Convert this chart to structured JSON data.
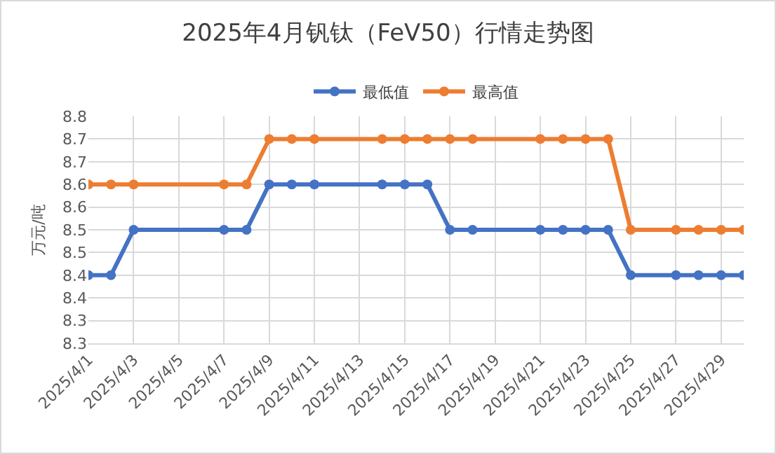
{
  "chart_data": {
    "type": "line",
    "title": "2025年4月钒钛（FeV50）行情走势图",
    "ylabel": "万元/吨",
    "x": [
      "2025-04-01",
      "2025-04-02",
      "2025-04-03",
      "2025-04-07",
      "2025-04-08",
      "2025-04-09",
      "2025-04-10",
      "2025-04-11",
      "2025-04-14",
      "2025-04-15",
      "2025-04-16",
      "2025-04-17",
      "2025-04-18",
      "2025-04-21",
      "2025-04-22",
      "2025-04-23",
      "2025-04-24",
      "2025-04-25",
      "2025-04-27",
      "2025-04-28",
      "2025-04-29",
      "2025-04-30"
    ],
    "series": [
      {
        "name": "最低值",
        "color": "#4472c4",
        "values": [
          8.45,
          8.45,
          8.55,
          8.55,
          8.55,
          8.65,
          8.65,
          8.65,
          8.65,
          8.65,
          8.65,
          8.55,
          8.55,
          8.55,
          8.55,
          8.55,
          8.55,
          8.45,
          8.45,
          8.45,
          8.45,
          8.45
        ]
      },
      {
        "name": "最高值",
        "color": "#ed7d31",
        "values": [
          8.65,
          8.65,
          8.65,
          8.65,
          8.65,
          8.75,
          8.75,
          8.75,
          8.75,
          8.75,
          8.75,
          8.75,
          8.75,
          8.75,
          8.75,
          8.75,
          8.75,
          8.55,
          8.55,
          8.55,
          8.55,
          8.55
        ]
      }
    ],
    "xlim": [
      "2025-04-01",
      "2025-04-30"
    ],
    "xticks": [
      {
        "value": "2025-04-01",
        "label": "2025/4/1"
      },
      {
        "value": "2025-04-03",
        "label": "2025/4/3"
      },
      {
        "value": "2025-04-05",
        "label": "2025/4/5"
      },
      {
        "value": "2025-04-07",
        "label": "2025/4/7"
      },
      {
        "value": "2025-04-09",
        "label": "2025/4/9"
      },
      {
        "value": "2025-04-11",
        "label": "2025/4/11"
      },
      {
        "value": "2025-04-13",
        "label": "2025/4/13"
      },
      {
        "value": "2025-04-15",
        "label": "2025/4/15"
      },
      {
        "value": "2025-04-17",
        "label": "2025/4/17"
      },
      {
        "value": "2025-04-19",
        "label": "2025/4/19"
      },
      {
        "value": "2025-04-21",
        "label": "2025/4/21"
      },
      {
        "value": "2025-04-23",
        "label": "2025/4/23"
      },
      {
        "value": "2025-04-25",
        "label": "2025/4/25"
      },
      {
        "value": "2025-04-27",
        "label": "2025/4/27"
      },
      {
        "value": "2025-04-29",
        "label": "2025/4/29"
      }
    ],
    "ylim": [
      8.3,
      8.8
    ],
    "yticks": [
      {
        "value": 8.3,
        "label": "8.3"
      },
      {
        "value": 8.35,
        "label": "8.3"
      },
      {
        "value": 8.4,
        "label": "8.4"
      },
      {
        "value": 8.45,
        "label": "8.4"
      },
      {
        "value": 8.5,
        "label": "8.5"
      },
      {
        "value": 8.55,
        "label": "8.5"
      },
      {
        "value": 8.6,
        "label": "8.6"
      },
      {
        "value": 8.65,
        "label": "8.6"
      },
      {
        "value": 8.7,
        "label": "8.7"
      },
      {
        "value": 8.75,
        "label": "8.7"
      },
      {
        "value": 8.8,
        "label": "8.8"
      }
    ],
    "grid": true,
    "legend": "top",
    "marker": "circle",
    "line_style": "solid"
  }
}
